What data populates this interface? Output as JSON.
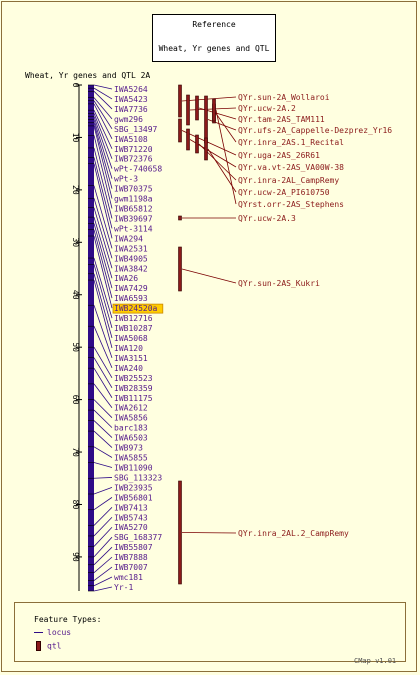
{
  "reference": {
    "line1": "Reference",
    "line2": "Wheat, Yr genes and QTL"
  },
  "map": {
    "title": "Wheat, Yr genes and QTL 2A",
    "scale_ticks": [
      "0",
      "10",
      "20",
      "30",
      "40",
      "50",
      "60",
      "70",
      "80",
      "90"
    ],
    "highlighted_marker": "IWB24520a",
    "markers": [
      "IWA5264",
      "IWA5423",
      "IWA7736",
      "gwm296",
      "SBG_13497",
      "IWA5108",
      "IWB71220",
      "IWB72376",
      "wPt-740658",
      "wPt-3",
      "IWB70375",
      "gwm1198a",
      "IWB65812",
      "IWB39697",
      "wPt-3114",
      "IWA294",
      "IWA2531",
      "IWB4905",
      "IWA3842",
      "IWA26",
      "IWA7429",
      "IWA6593",
      "IWB24520a",
      "IWB12716",
      "IWB10287",
      "IWA5068",
      "IWA120",
      "IWA3151",
      "IWA240",
      "IWB25523",
      "IWB28359",
      "IWB11175",
      "IWA2612",
      "IWA5856",
      "barc183",
      "IWA6503",
      "IWB973",
      "IWA5855",
      "IWB11090",
      "SBG_113323",
      "IWB23935",
      "IWB56801",
      "IWB7413",
      "IWB5743",
      "IWA5270",
      "SBG_168377",
      "IWB55807",
      "IWB7888",
      "IWB7007",
      "wmc181",
      "Yr-1"
    ],
    "qtls": [
      "QYr.sun-2A_Wollaroi",
      "QYr.ucw-2A.2",
      "QYr.tam-2AS_TAM111",
      "QYr.ufs-2A_Cappelle-Dezprez_Yr16",
      "QYr.inra_2AS.1_Recital",
      "QYr.uga-2AS_26R61",
      "QYr.va.vt-2AS_VA00W-38",
      "QYr.inra-2AL_CampRemy",
      "QYr.ucw-2A_PI610750",
      "QYrst.orr-2AS_Stephens",
      "QYr.ucw-2A.3",
      "QYr.sun-2AS_Kukri",
      "QYr.inra_2AL.2_CampRemy"
    ]
  },
  "legend": {
    "title": "Feature Types:",
    "locus_label": "locus",
    "qtl_label": "qtl"
  },
  "footer": {
    "version": "CMap v1.01"
  },
  "colors": {
    "background": "#ffffe0",
    "frame": "#8b6f3a",
    "chromosome": "#2e0b86",
    "marker_text": "#551a8b",
    "qtl_fill": "#8b1a1a",
    "qtl_line": "#7a0000",
    "highlight": "#ffcc00"
  }
}
